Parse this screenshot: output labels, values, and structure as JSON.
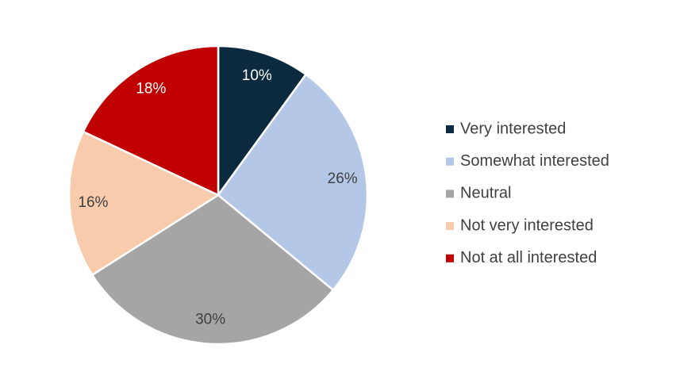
{
  "chart_data": {
    "type": "pie",
    "categories": [
      "Very interested",
      "Somewhat interested",
      "Neutral",
      "Not very interested",
      "Not at all interested"
    ],
    "values": [
      10,
      26,
      30,
      16,
      18
    ],
    "value_labels": [
      "10%",
      "26%",
      "30%",
      "16%",
      "18%"
    ],
    "colors": [
      "#0b2a3e",
      "#b4c7e7",
      "#a5a5a5",
      "#f8cbad",
      "#c00000"
    ],
    "legend": "right"
  }
}
